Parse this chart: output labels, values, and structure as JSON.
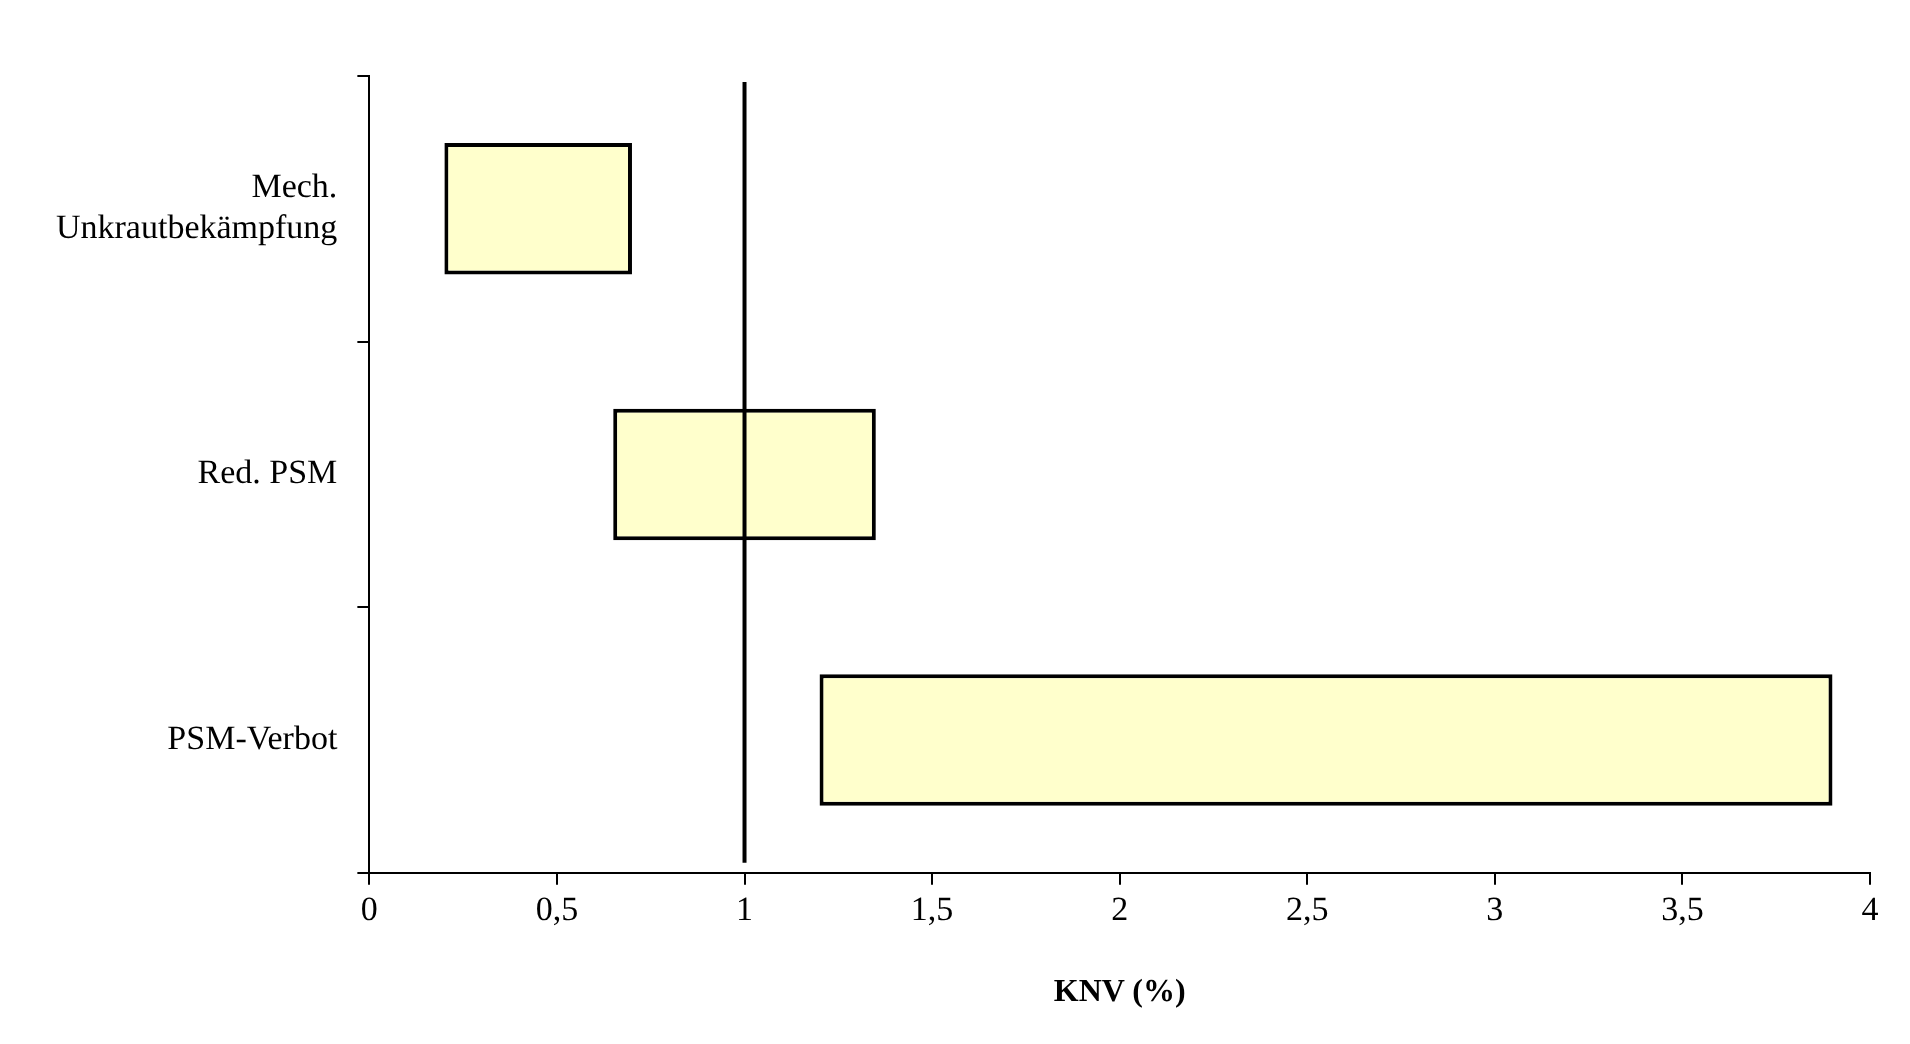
{
  "chart_data": {
    "type": "bar",
    "orientation": "horizontal",
    "xlabel": "KNV (%)",
    "categories": [
      "Mech. Unkrautbekämpfung",
      "Red. PSM",
      "PSM-Verbot"
    ],
    "base": [
      0.2,
      0.65,
      1.2
    ],
    "values": [
      0.5,
      0.7,
      2.7
    ],
    "color": "#ffffcc",
    "xlim": [
      0,
      4
    ],
    "xticks": [
      0,
      {
        "value": 0.5,
        "label": "0,5"
      },
      1,
      {
        "value": 1.5,
        "label": "1,5"
      },
      2,
      {
        "value": 2.5,
        "label": "2,5"
      },
      3,
      {
        "value": 3.5,
        "label": "3,5"
      },
      4
    ],
    "ref_lines": [
      {
        "axis": "x",
        "value": 1,
        "label": null,
        "color": "#000000"
      }
    ],
    "grid": false,
    "legend": false
  }
}
